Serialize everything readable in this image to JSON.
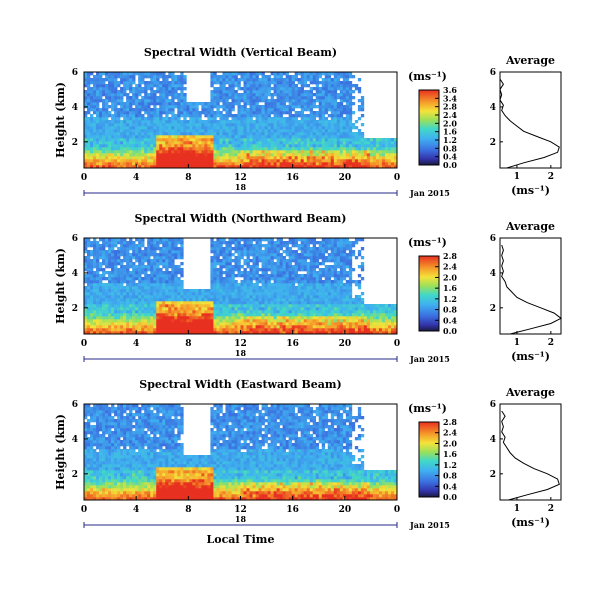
{
  "chart_data": [
    {
      "type": "heatmap",
      "title": "Spectral Width (Vertical Beam)",
      "ylabel": "Height (km)",
      "ylim": [
        0.5,
        6
      ],
      "yticks": [
        "2",
        "4",
        "6"
      ],
      "xlim": [
        0,
        24
      ],
      "xticks": [
        "0",
        "4",
        "8",
        "12",
        "16",
        "20",
        "0"
      ],
      "date_marker": "18",
      "date_label": "Jan 2015",
      "colorbar": {
        "unit": "(ms⁻¹)",
        "ticks": [
          "3.6",
          "3.4",
          "2.8",
          "2.4",
          "2.0",
          "1.6",
          "1.2",
          "0.8",
          "0.4",
          "0.0"
        ],
        "range": [
          0,
          3.6
        ]
      },
      "average_profile": {
        "title": "Average",
        "xlabel": "(ms⁻¹)",
        "xticks": [
          "1",
          "2"
        ],
        "xlim": [
          0.5,
          2.3
        ],
        "yticks": [
          "2",
          "4",
          "6"
        ],
        "ylim": [
          0.5,
          6
        ],
        "heights": [
          0.5,
          0.8,
          1.1,
          1.4,
          1.7,
          2.0,
          2.3,
          2.6,
          2.9,
          3.2,
          3.5,
          3.8,
          4.1,
          4.4,
          4.7,
          5.0,
          5.3,
          5.6
        ],
        "values": [
          0.7,
          1.2,
          1.8,
          2.2,
          2.25,
          2.0,
          1.6,
          1.2,
          1.0,
          0.8,
          0.65,
          0.55,
          0.6,
          0.5,
          0.55,
          0.5,
          0.6,
          0.5
        ]
      }
    },
    {
      "type": "heatmap",
      "title": "Spectral Width (Northward Beam)",
      "ylabel": "Height (km)",
      "ylim": [
        0.5,
        6
      ],
      "yticks": [
        "2",
        "4",
        "6"
      ],
      "xlim": [
        0,
        24
      ],
      "xticks": [
        "0",
        "4",
        "8",
        "12",
        "16",
        "20",
        "0"
      ],
      "date_marker": "18",
      "date_label": "Jan 2015",
      "colorbar": {
        "unit": "(ms⁻¹)",
        "ticks": [
          "2.8",
          "2.4",
          "2.0",
          "1.6",
          "1.2",
          "0.8",
          "0.4",
          "0.0"
        ],
        "range": [
          0,
          2.8
        ]
      },
      "average_profile": {
        "title": "Average",
        "xlabel": "(ms⁻¹)",
        "xticks": [
          "1",
          "2"
        ],
        "xlim": [
          0.5,
          2.3
        ],
        "yticks": [
          "2",
          "4",
          "6"
        ],
        "ylim": [
          0.5,
          6
        ],
        "heights": [
          0.5,
          0.8,
          1.1,
          1.4,
          1.7,
          2.0,
          2.3,
          2.6,
          2.9,
          3.2,
          3.5,
          3.8,
          4.1,
          4.4,
          4.7,
          5.0,
          5.3,
          5.6
        ],
        "values": [
          0.8,
          1.4,
          2.0,
          2.3,
          2.1,
          1.7,
          1.3,
          1.0,
          0.85,
          0.7,
          0.65,
          0.55,
          0.6,
          0.55,
          0.6,
          0.55,
          0.6,
          0.55
        ]
      }
    },
    {
      "type": "heatmap",
      "title": "Spectral Width (Eastward Beam)",
      "ylabel": "Height (km)",
      "ylim": [
        0.5,
        6
      ],
      "yticks": [
        "2",
        "4",
        "6"
      ],
      "xlim": [
        0,
        24
      ],
      "xticks": [
        "0",
        "4",
        "8",
        "12",
        "16",
        "20",
        "0"
      ],
      "date_marker": "18",
      "date_label": "Jan 2015",
      "xlabel": "Local Time",
      "colorbar": {
        "unit": "(ms⁻¹)",
        "ticks": [
          "2.8",
          "2.4",
          "2.0",
          "1.6",
          "1.2",
          "0.8",
          "0.4",
          "0.0"
        ],
        "range": [
          0,
          2.8
        ]
      },
      "average_profile": {
        "title": "Average",
        "xlabel": "(ms⁻¹)",
        "xticks": [
          "1",
          "2"
        ],
        "xlim": [
          0.5,
          2.3
        ],
        "yticks": [
          "2",
          "4",
          "6"
        ],
        "ylim": [
          0.5,
          6
        ],
        "heights": [
          0.5,
          0.8,
          1.1,
          1.4,
          1.7,
          2.0,
          2.3,
          2.6,
          2.9,
          3.2,
          3.5,
          3.8,
          4.1,
          4.4,
          4.7,
          5.0,
          5.3,
          5.6
        ],
        "values": [
          0.75,
          1.3,
          1.9,
          2.25,
          2.2,
          1.9,
          1.5,
          1.2,
          0.95,
          0.8,
          0.7,
          0.6,
          0.65,
          0.55,
          0.6,
          0.55,
          0.65,
          0.55
        ]
      }
    }
  ]
}
